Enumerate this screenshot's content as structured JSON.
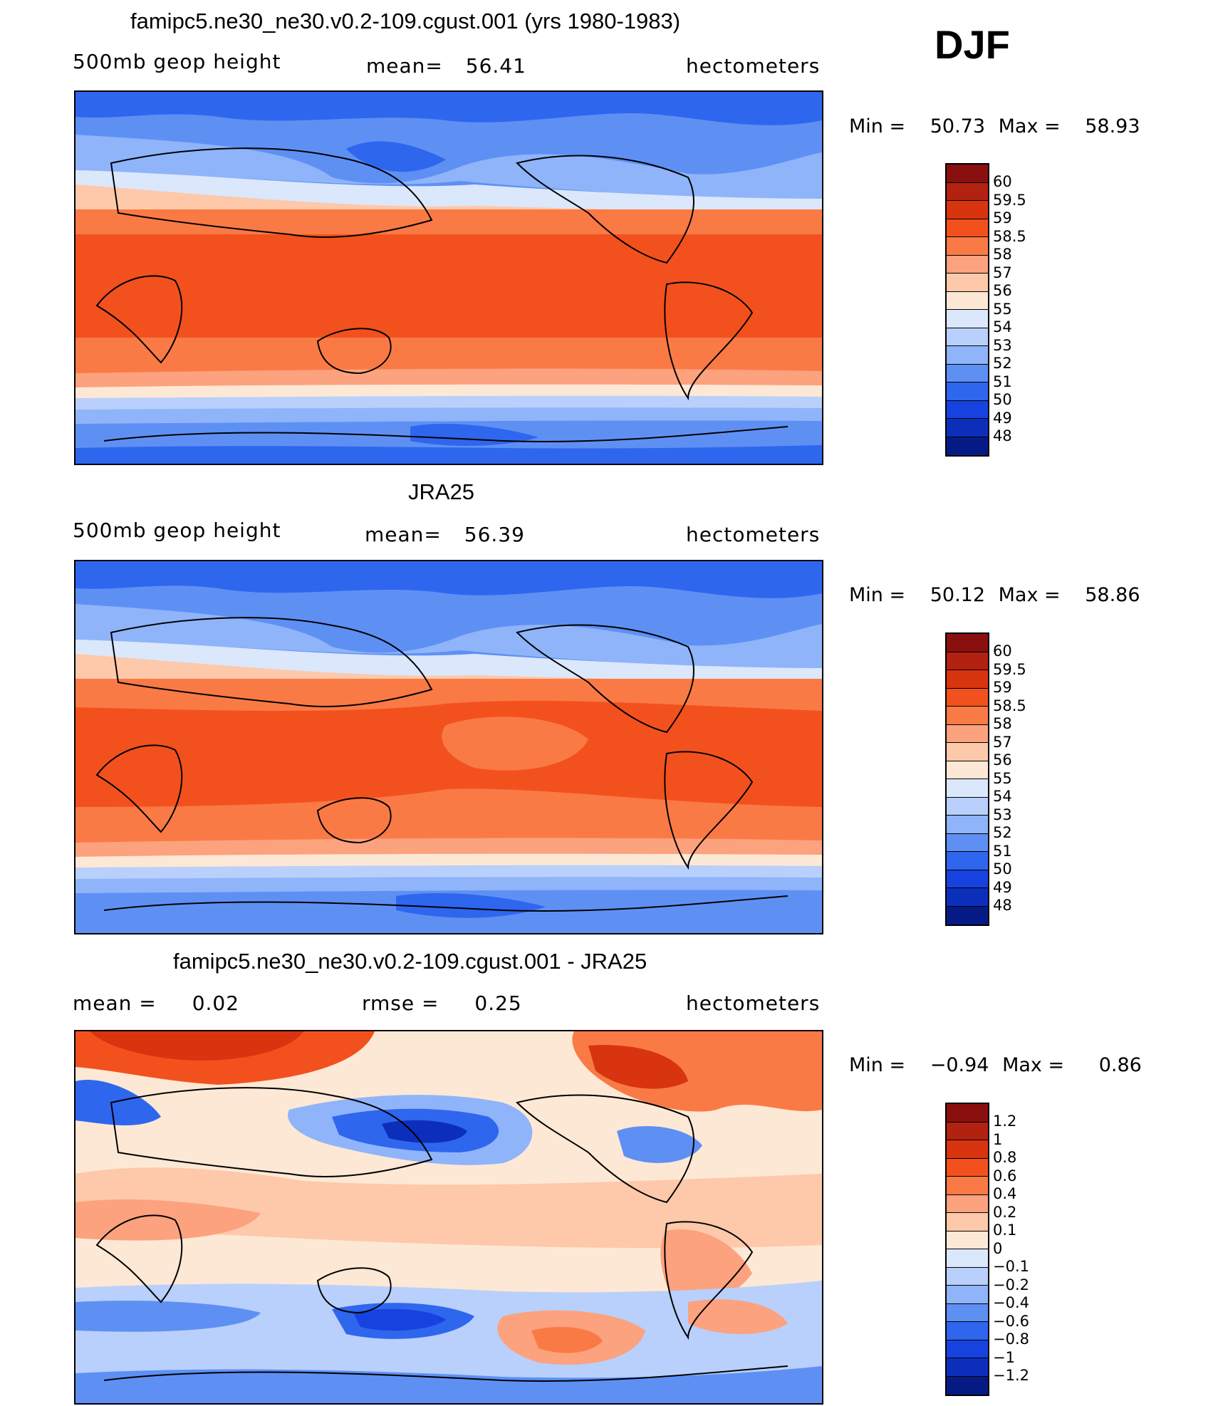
{
  "season": "DJF",
  "panel1": {
    "title": "famipc5.ne30_ne30.v0.2-109.cgust.001 (yrs 1980-1983)",
    "variable": "500mb geop height",
    "mean_label": "mean=",
    "mean_value": "56.41",
    "units": "hectometers",
    "min_label": "Min =",
    "min_value": "50.73",
    "max_label": "Max =",
    "max_value": "58.93"
  },
  "panel2": {
    "title": "JRA25",
    "variable": "500mb geop height",
    "mean_label": "mean=",
    "mean_value": "56.39",
    "units": "hectometers",
    "min_label": "Min =",
    "min_value": "50.12",
    "max_label": "Max =",
    "max_value": "58.86"
  },
  "panel3": {
    "title": "famipc5.ne30_ne30.v0.2-109.cgust.001 - JRA25",
    "mean_label": "mean =",
    "mean_value": "0.02",
    "rmse_label": "rmse =",
    "rmse_value": "0.25",
    "units": "hectometers",
    "min_label": "Min =",
    "min_value": "−0.94",
    "max_label": "Max =",
    "max_value": "0.86"
  },
  "colorbar_height": {
    "labels": [
      "60",
      "59.5",
      "59",
      "58.5",
      "58",
      "57",
      "56",
      "55",
      "54",
      "53",
      "52",
      "51",
      "50",
      "49",
      "48"
    ],
    "colors": [
      "#8a0f0f",
      "#b32211",
      "#d8340f",
      "#f2511e",
      "#fa7a46",
      "#fca27e",
      "#fdc9aa",
      "#fde8d5",
      "#dbe7fb",
      "#b8d0fb",
      "#8fb4fa",
      "#5e90f4",
      "#2f66ee",
      "#1643df",
      "#0c2fbb",
      "#061a86"
    ]
  },
  "colorbar_diff": {
    "labels": [
      "1.2",
      "1",
      "0.8",
      "0.6",
      "0.4",
      "0.2",
      "0.1",
      "0",
      "−0.1",
      "−0.2",
      "−0.4",
      "−0.6",
      "−0.8",
      "−1",
      "−1.2"
    ],
    "colors": [
      "#8a0f0f",
      "#b32211",
      "#d8340f",
      "#f2511e",
      "#fa7a46",
      "#fca27e",
      "#fdc9aa",
      "#fde8d5",
      "#dbe7fb",
      "#b8d0fb",
      "#8fb4fa",
      "#5e90f4",
      "#2f66ee",
      "#1643df",
      "#0c2fbb",
      "#061a86"
    ]
  }
}
